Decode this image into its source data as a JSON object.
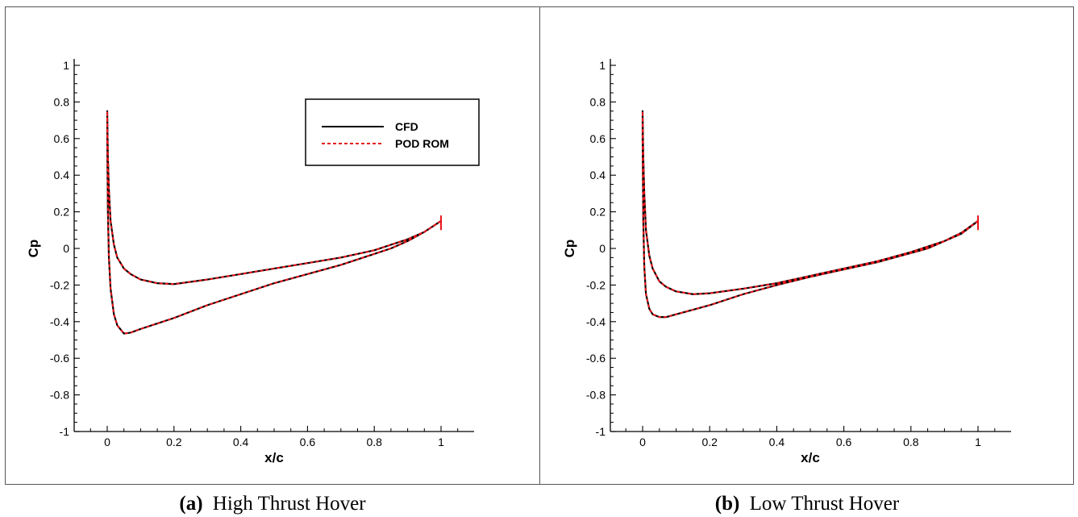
{
  "chart_data": [
    {
      "type": "line",
      "caption_label": "(a)",
      "caption_text": "High Thrust Hover",
      "xlabel": "x/c",
      "ylabel": "Cp",
      "xlim": [
        -0.1,
        1.1
      ],
      "ylim": [
        -1,
        1
      ],
      "xticks": [
        0,
        0.2,
        0.4,
        0.6,
        0.8,
        1
      ],
      "xtick_labels": [
        "0",
        "0.2",
        "0.4",
        "0.6",
        "0.8",
        "1"
      ],
      "yticks": [
        -1,
        -0.8,
        -0.6,
        -0.4,
        -0.2,
        0,
        0.2,
        0.4,
        0.6,
        0.8,
        1
      ],
      "ytick_labels": [
        "-1",
        "-0.8",
        "-0.6",
        "-0.4",
        "-0.2",
        "0",
        "0.2",
        "0.4",
        "0.6",
        "0.8",
        "1"
      ],
      "grid": false,
      "legend": {
        "position": "top-right",
        "entries": [
          {
            "label": "CFD",
            "color": "#000000",
            "style": "solid"
          },
          {
            "label": "POD ROM",
            "color": "#e8161b",
            "style": "dashed"
          }
        ]
      },
      "series": [
        {
          "name": "CFD",
          "color": "#000000",
          "x": [
            1.0,
            0.95,
            0.9,
            0.85,
            0.8,
            0.7,
            0.6,
            0.5,
            0.4,
            0.3,
            0.2,
            0.15,
            0.1,
            0.07,
            0.05,
            0.03,
            0.02,
            0.01,
            0.005,
            0.002,
            0.0,
            0.0,
            0.002,
            0.005,
            0.01,
            0.02,
            0.03,
            0.05,
            0.07,
            0.1,
            0.15,
            0.2,
            0.3,
            0.4,
            0.5,
            0.6,
            0.7,
            0.8,
            0.85,
            0.9,
            0.95,
            1.0
          ],
          "y": [
            0.15,
            0.09,
            0.05,
            0.02,
            -0.01,
            -0.05,
            -0.08,
            -0.11,
            -0.14,
            -0.17,
            -0.195,
            -0.19,
            -0.17,
            -0.14,
            -0.11,
            -0.05,
            0.02,
            0.15,
            0.32,
            0.5,
            0.75,
            0.6,
            0.2,
            -0.05,
            -0.22,
            -0.36,
            -0.42,
            -0.465,
            -0.46,
            -0.44,
            -0.41,
            -0.38,
            -0.31,
            -0.25,
            -0.19,
            -0.14,
            -0.09,
            -0.03,
            0.0,
            0.04,
            0.09,
            0.15
          ]
        },
        {
          "name": "POD ROM",
          "color": "#e8161b",
          "x": [
            1.0,
            0.95,
            0.9,
            0.85,
            0.8,
            0.7,
            0.6,
            0.5,
            0.4,
            0.3,
            0.2,
            0.15,
            0.1,
            0.07,
            0.05,
            0.03,
            0.02,
            0.01,
            0.005,
            0.002,
            0.0,
            0.0,
            0.002,
            0.005,
            0.01,
            0.02,
            0.03,
            0.05,
            0.07,
            0.1,
            0.15,
            0.2,
            0.3,
            0.4,
            0.5,
            0.6,
            0.7,
            0.8,
            0.85,
            0.9,
            0.95,
            1.0
          ],
          "y": [
            0.15,
            0.09,
            0.05,
            0.02,
            -0.01,
            -0.05,
            -0.08,
            -0.11,
            -0.14,
            -0.17,
            -0.195,
            -0.19,
            -0.17,
            -0.14,
            -0.11,
            -0.05,
            0.02,
            0.15,
            0.32,
            0.5,
            0.75,
            0.6,
            0.2,
            -0.05,
            -0.22,
            -0.36,
            -0.42,
            -0.465,
            -0.46,
            -0.44,
            -0.41,
            -0.38,
            -0.31,
            -0.25,
            -0.19,
            -0.14,
            -0.09,
            -0.03,
            0.0,
            0.04,
            0.09,
            0.15
          ]
        }
      ]
    },
    {
      "type": "line",
      "caption_label": "(b)",
      "caption_text": "Low Thrust Hover",
      "xlabel": "x/c",
      "ylabel": "Cp",
      "xlim": [
        -0.1,
        1.1
      ],
      "ylim": [
        -1,
        1
      ],
      "xticks": [
        0,
        0.2,
        0.4,
        0.6,
        0.8,
        1
      ],
      "xtick_labels": [
        "0",
        "0.2",
        "0.4",
        "0.6",
        "0.8",
        "1"
      ],
      "yticks": [
        -1,
        -0.8,
        -0.6,
        -0.4,
        -0.2,
        0,
        0.2,
        0.4,
        0.6,
        0.8,
        1
      ],
      "ytick_labels": [
        "-1",
        "-0.8",
        "-0.6",
        "-0.4",
        "-0.2",
        "0",
        "0.2",
        "0.4",
        "0.6",
        "0.8",
        "1"
      ],
      "grid": false,
      "series": [
        {
          "name": "CFD",
          "color": "#000000",
          "x": [
            1.0,
            0.95,
            0.9,
            0.85,
            0.8,
            0.7,
            0.6,
            0.5,
            0.4,
            0.3,
            0.2,
            0.15,
            0.1,
            0.07,
            0.05,
            0.03,
            0.02,
            0.01,
            0.005,
            0.002,
            0.0,
            0.0,
            0.002,
            0.005,
            0.01,
            0.02,
            0.03,
            0.05,
            0.07,
            0.1,
            0.15,
            0.2,
            0.3,
            0.4,
            0.5,
            0.6,
            0.7,
            0.8,
            0.85,
            0.9,
            0.95,
            1.0
          ],
          "y": [
            0.15,
            0.08,
            0.04,
            0.01,
            -0.02,
            -0.07,
            -0.11,
            -0.15,
            -0.19,
            -0.22,
            -0.245,
            -0.25,
            -0.235,
            -0.21,
            -0.18,
            -0.11,
            -0.04,
            0.1,
            0.3,
            0.5,
            0.75,
            0.6,
            0.15,
            -0.1,
            -0.25,
            -0.33,
            -0.36,
            -0.375,
            -0.375,
            -0.36,
            -0.335,
            -0.31,
            -0.25,
            -0.2,
            -0.155,
            -0.115,
            -0.075,
            -0.025,
            0.0,
            0.04,
            0.085,
            0.15
          ]
        },
        {
          "name": "POD ROM",
          "color": "#e8161b",
          "x": [
            1.0,
            0.95,
            0.9,
            0.85,
            0.8,
            0.7,
            0.6,
            0.5,
            0.4,
            0.3,
            0.2,
            0.15,
            0.1,
            0.07,
            0.05,
            0.03,
            0.02,
            0.01,
            0.005,
            0.002,
            0.0,
            0.0,
            0.002,
            0.005,
            0.01,
            0.02,
            0.03,
            0.05,
            0.07,
            0.1,
            0.15,
            0.2,
            0.3,
            0.4,
            0.5,
            0.6,
            0.7,
            0.8,
            0.85,
            0.9,
            0.95,
            1.0
          ],
          "y": [
            0.15,
            0.08,
            0.04,
            0.01,
            -0.02,
            -0.07,
            -0.11,
            -0.15,
            -0.19,
            -0.22,
            -0.245,
            -0.25,
            -0.235,
            -0.21,
            -0.18,
            -0.11,
            -0.04,
            0.1,
            0.3,
            0.5,
            0.75,
            0.6,
            0.15,
            -0.1,
            -0.25,
            -0.33,
            -0.36,
            -0.375,
            -0.375,
            -0.36,
            -0.335,
            -0.31,
            -0.25,
            -0.2,
            -0.155,
            -0.115,
            -0.075,
            -0.025,
            0.0,
            0.04,
            0.085,
            0.15
          ]
        }
      ]
    }
  ]
}
